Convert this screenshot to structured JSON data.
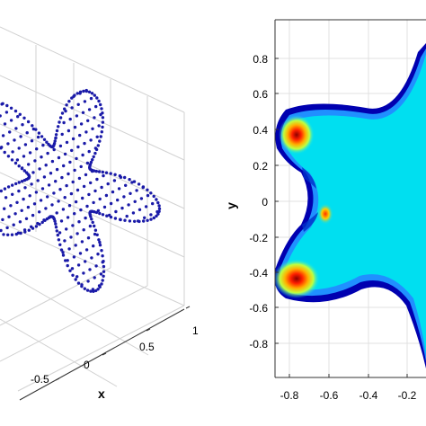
{
  "chart_data": [
    {
      "type": "scatter",
      "projection": "3d",
      "marker": "dot",
      "color": "#1a1aa8",
      "xlabel": "x",
      "x_ticks": [
        "-0.5",
        "0",
        "0.5",
        "1"
      ],
      "grid": true,
      "points": "star-shaped surface sampled on a regular grid (x,y in about [-0.9, 0.95])"
    },
    {
      "type": "heatmap",
      "ylabel": "y",
      "xlim": [
        -0.9,
        0.1
      ],
      "ylim": [
        -1.0,
        1.0
      ],
      "x_ticks": [
        "-0.8",
        "-0.6",
        "-0.4",
        "-0.2"
      ],
      "y_ticks": [
        "0.8",
        "0.6",
        "0.4",
        "0.2",
        "0",
        "-0.2",
        "-0.4",
        "-0.6",
        "-0.8"
      ],
      "colormap": "jet",
      "grid": true,
      "domain_shape": "five-lobed star",
      "hot_spots": [
        {
          "x": -0.78,
          "y": 0.38,
          "level": "high"
        },
        {
          "x": -0.78,
          "y": -0.42,
          "level": "high"
        },
        {
          "x": -0.57,
          "y": -0.07,
          "level": "medium"
        }
      ]
    }
  ]
}
